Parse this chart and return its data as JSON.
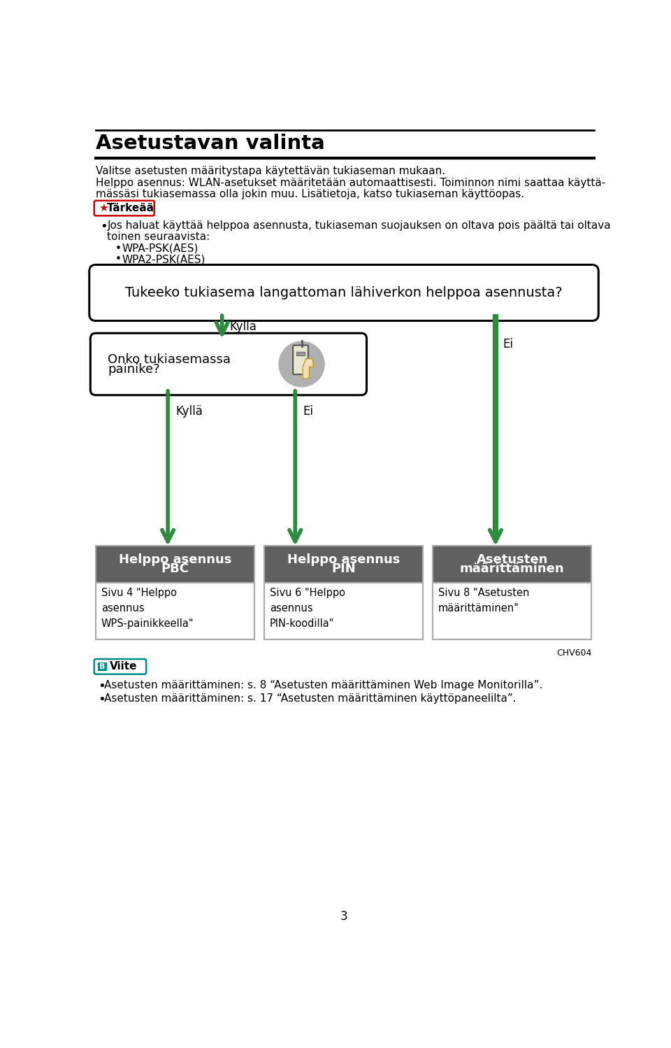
{
  "title": "Asetustavan valinta",
  "bg_color": "#ffffff",
  "text_color": "#000000",
  "green_color": "#2d8b3e",
  "dark_gray": "#606060",
  "para1": "Valitse asetusten määritystapa käytettävän tukiaseman mukaan.",
  "para2a": "Helppo asennus: WLAN-asetukset määritetään automaattisesti. Toiminnon nimi saattaa käyttä-",
  "para2b": "mässäsi tukiasemassa olla jokin muu. Lisätietoja, katso tukiaseman käyttöopas.",
  "tarkeaa_label": "Tärkeää",
  "tarkeaa_color": "#cc0000",
  "bullet1a": "Jos haluat käyttää helppoa asennusta, tukiaseman suojauksen on oltava pois päältä tai oltava",
  "bullet1b": "toinen seuraavista:",
  "sub_bullet1": "WPA-PSK(AES)",
  "sub_bullet2": "WPA2-PSK(AES)",
  "question_box": "Tukeeko tukiasema langattoman lähiverkon helppoa asennusta?",
  "kyllaLabel": "Kyllä",
  "eiLabel": "Ei",
  "onko_box1": "Onko tukiasemassa",
  "onko_box2": "painike?",
  "box1_title1": "Helppo asennus",
  "box1_title2": "PBC",
  "box1_sub": "Sivu 4 \"Helppo\nasennus\nWPS-painikkeella\"",
  "box2_title1": "Helppo asennus",
  "box2_title2": "PIN",
  "box2_sub": "Sivu 6 \"Helppo\nasennus\nPIN-koodilla\"",
  "box3_title1": "Asetusten",
  "box3_title2": "määrittäminen",
  "box3_sub": "Sivu 8 \"Asetusten\nmäärittäminen\"",
  "chv": "CHV604",
  "viite_label": "Viite",
  "viite_color": "#008b8b",
  "viite1": "Asetusten määrittäminen: s. 8 “Asetusten määrittäminen Web Image Monitorilla”.",
  "viite2": "Asetusten määrittäminen: s. 17 “Asetusten määrittäminen käyttöpaneelilta”.",
  "page_num": "3"
}
